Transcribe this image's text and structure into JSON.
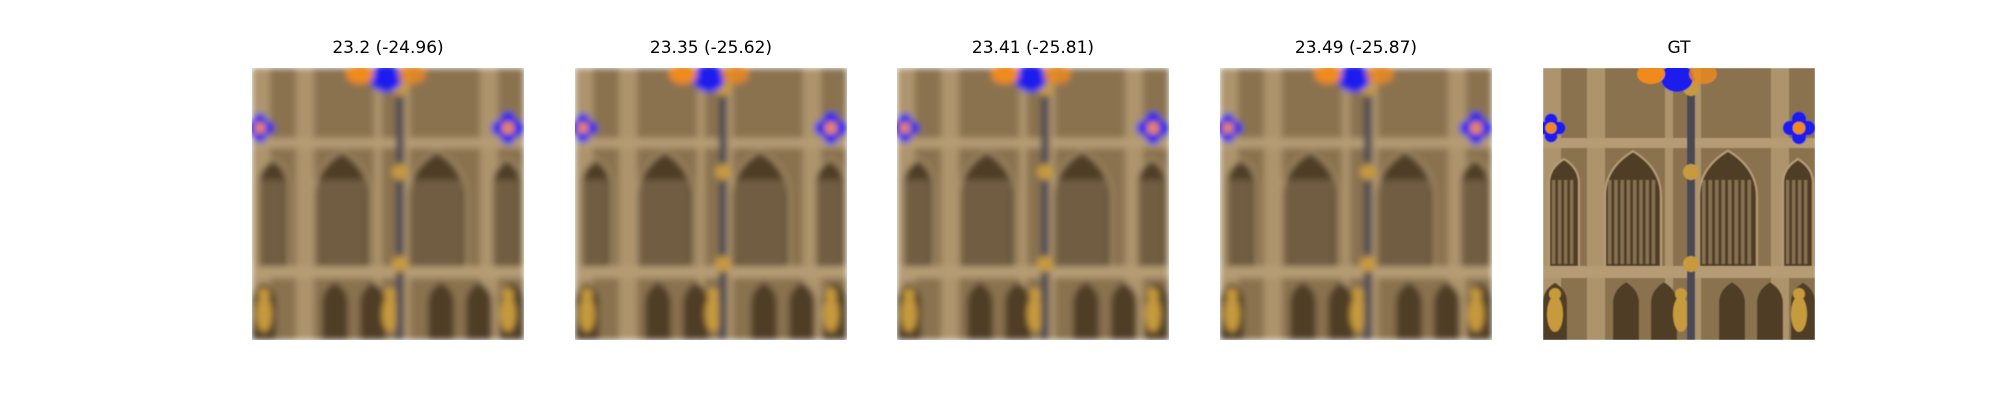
{
  "panels": [
    {
      "title": "23.2 (-24.96)",
      "quality": "blurred"
    },
    {
      "title": "23.35 (-25.62)",
      "quality": "blurred"
    },
    {
      "title": "23.41 (-25.81)",
      "quality": "blurred"
    },
    {
      "title": "23.49 (-25.87)",
      "quality": "blurred"
    },
    {
      "title": "GT",
      "quality": "sharp"
    }
  ],
  "colors": {
    "stone": "#8a7250",
    "stone_light": "#b59c74",
    "stone_dark": "#4f3c26",
    "gold": "#c69a3c",
    "glass_blue": "#1a1aee",
    "glass_orange": "#f08a1a"
  }
}
